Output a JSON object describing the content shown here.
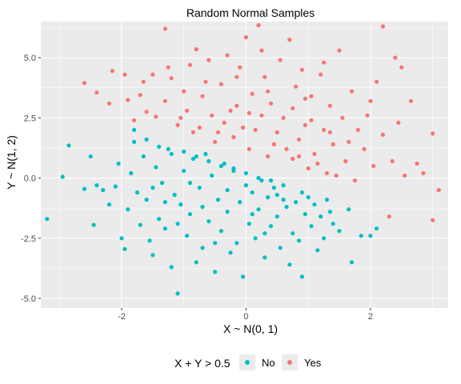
{
  "chart_data": {
    "type": "scatter",
    "title": "Random Normal Samples",
    "xlabel": "X ~ N(0, 1)",
    "ylabel": "Y ~ N(1, 2)",
    "xlim": [
      -3.3,
      3.25
    ],
    "ylim": [
      -5.4,
      6.5
    ],
    "x_ticks": [
      -2,
      0,
      2
    ],
    "x_tick_labels": [
      "-2",
      "0",
      "2"
    ],
    "y_ticks": [
      -5,
      -2.5,
      0,
      2.5,
      5
    ],
    "y_tick_labels": [
      "-5.0",
      "-2.5",
      "0.0",
      "2.5",
      "5.0"
    ],
    "grid": true,
    "background": "#ebebeb",
    "legend": {
      "title": "X + Y > 0.5",
      "placement": "bottom",
      "entries": [
        {
          "label": "No",
          "color": "#00bfc4"
        },
        {
          "label": "Yes",
          "color": "#f8766d"
        }
      ]
    },
    "series": [
      {
        "name": "No",
        "color": "#00bfc4",
        "points": [
          [
            -3.2,
            -1.7
          ],
          [
            -2.95,
            0.05
          ],
          [
            -2.85,
            1.35
          ],
          [
            -2.6,
            -0.45
          ],
          [
            -2.5,
            0.9
          ],
          [
            -2.45,
            -1.95
          ],
          [
            -2.4,
            -0.3
          ],
          [
            -2.3,
            -0.5
          ],
          [
            -2.2,
            -1.1
          ],
          [
            -2.1,
            -0.35
          ],
          [
            -2.05,
            0.6
          ],
          [
            -2.0,
            -2.5
          ],
          [
            -1.95,
            -2.95
          ],
          [
            -1.9,
            -1.3
          ],
          [
            -1.85,
            0.2
          ],
          [
            -1.8,
            1.5
          ],
          [
            -1.75,
            -0.6
          ],
          [
            -1.7,
            -1.95
          ],
          [
            -1.65,
            0.9
          ],
          [
            -1.6,
            -0.9
          ],
          [
            -1.55,
            -2.6
          ],
          [
            -1.5,
            -3.2
          ],
          [
            -1.45,
            0.45
          ],
          [
            -1.4,
            -1.7
          ],
          [
            -1.35,
            -0.2
          ],
          [
            -1.3,
            -2.1
          ],
          [
            -1.25,
            1.2
          ],
          [
            -1.2,
            -3.7
          ],
          [
            -1.15,
            -0.7
          ],
          [
            -1.1,
            -4.8
          ],
          [
            -1.05,
            -1.1
          ],
          [
            -1.0,
            0.3
          ],
          [
            -0.95,
            -2.4
          ],
          [
            -0.9,
            -1.5
          ],
          [
            -0.85,
            0.8
          ],
          [
            -0.8,
            -3.5
          ],
          [
            -0.75,
            -0.4
          ],
          [
            -0.7,
            -2.9
          ],
          [
            -0.65,
            1.0
          ],
          [
            -0.6,
            -1.8
          ],
          [
            -0.55,
            0.1
          ],
          [
            -0.5,
            -3.9
          ],
          [
            -0.45,
            -0.9
          ],
          [
            -0.4,
            -2.2
          ],
          [
            -0.35,
            0.6
          ],
          [
            -0.3,
            -1.4
          ],
          [
            -0.25,
            -3.1
          ],
          [
            -0.2,
            0.4
          ],
          [
            -0.15,
            -2.7
          ],
          [
            -0.1,
            -1.0
          ],
          [
            -0.05,
            -4.1
          ],
          [
            0.0,
            -0.3
          ],
          [
            0.05,
            -1.9
          ],
          [
            0.1,
            -0.6
          ],
          [
            0.15,
            -2.5
          ],
          [
            0.2,
            -1.3
          ],
          [
            0.25,
            -0.1
          ],
          [
            0.3,
            -3.3
          ],
          [
            0.35,
            -0.8
          ],
          [
            0.4,
            -2.0
          ],
          [
            0.45,
            -0.4
          ],
          [
            0.5,
            -1.6
          ],
          [
            0.55,
            -2.9
          ],
          [
            0.6,
            -0.9
          ],
          [
            0.65,
            -1.2
          ],
          [
            0.7,
            -3.6
          ],
          [
            0.75,
            -2.3
          ],
          [
            0.8,
            -1.0
          ],
          [
            0.85,
            -2.6
          ],
          [
            0.9,
            -4.1
          ],
          [
            0.95,
            -1.5
          ],
          [
            1.0,
            -0.8
          ],
          [
            1.05,
            -2.0
          ],
          [
            1.1,
            -1.1
          ],
          [
            1.15,
            -3.0
          ],
          [
            1.2,
            -1.6
          ],
          [
            1.25,
            -2.5
          ],
          [
            1.3,
            -0.9
          ],
          [
            1.35,
            -1.4
          ],
          [
            1.4,
            -1.9
          ],
          [
            1.5,
            -2.2
          ],
          [
            1.65,
            -1.3
          ],
          [
            1.7,
            -3.5
          ],
          [
            1.85,
            -2.4
          ],
          [
            2.0,
            -2.4
          ],
          [
            2.1,
            -2.1
          ],
          [
            -1.8,
            2.0
          ],
          [
            -1.6,
            1.6
          ],
          [
            -1.4,
            1.3
          ],
          [
            -1.2,
            1.0
          ],
          [
            -1.0,
            1.1
          ],
          [
            -0.8,
            0.9
          ],
          [
            -0.6,
            0.7
          ],
          [
            -0.4,
            0.5
          ],
          [
            -0.2,
            0.3
          ],
          [
            0.0,
            0.2
          ],
          [
            0.2,
            0.0
          ],
          [
            0.4,
            -0.1
          ],
          [
            0.6,
            -0.3
          ],
          [
            -1.5,
            -0.4
          ],
          [
            -1.1,
            -1.9
          ],
          [
            -0.7,
            -1.2
          ],
          [
            -0.3,
            -0.5
          ],
          [
            0.1,
            -1.5
          ],
          [
            0.5,
            -0.7
          ],
          [
            0.9,
            -0.6
          ],
          [
            -0.9,
            -0.2
          ],
          [
            -0.5,
            -2.7
          ],
          [
            -1.3,
            -1.0
          ],
          [
            0.3,
            -2.3
          ]
        ]
      },
      {
        "name": "Yes",
        "color": "#f8766d",
        "points": [
          [
            -2.6,
            3.95
          ],
          [
            -2.4,
            3.55
          ],
          [
            -2.2,
            3.1
          ],
          [
            -2.15,
            4.45
          ],
          [
            -1.95,
            4.3
          ],
          [
            -1.9,
            3.25
          ],
          [
            -1.8,
            2.4
          ],
          [
            -1.7,
            3.45
          ],
          [
            -1.6,
            2.75
          ],
          [
            -1.5,
            4.3
          ],
          [
            -1.45,
            2.55
          ],
          [
            -1.3,
            3.2
          ],
          [
            -1.3,
            6.2
          ],
          [
            -1.2,
            4.15
          ],
          [
            -1.1,
            2.2
          ],
          [
            -1.0,
            3.6
          ],
          [
            -0.95,
            2.8
          ],
          [
            -0.9,
            4.7
          ],
          [
            -0.85,
            1.9
          ],
          [
            -0.8,
            5.35
          ],
          [
            -0.7,
            3.4
          ],
          [
            -0.6,
            4.9
          ],
          [
            -0.55,
            2.6
          ],
          [
            -0.5,
            1.5
          ],
          [
            -0.4,
            3.9
          ],
          [
            -0.35,
            2.3
          ],
          [
            -0.3,
            5.1
          ],
          [
            -0.2,
            1.7
          ],
          [
            -0.15,
            3.0
          ],
          [
            -0.1,
            4.6
          ],
          [
            -0.05,
            2.1
          ],
          [
            0.0,
            5.85
          ],
          [
            0.05,
            1.2
          ],
          [
            0.1,
            3.5
          ],
          [
            0.2,
            6.35
          ],
          [
            0.25,
            2.6
          ],
          [
            0.3,
            4.2
          ],
          [
            0.35,
            0.9
          ],
          [
            0.4,
            3.1
          ],
          [
            0.5,
            1.9
          ],
          [
            0.55,
            4.9
          ],
          [
            0.6,
            2.5
          ],
          [
            0.7,
            5.75
          ],
          [
            0.75,
            0.8
          ],
          [
            0.8,
            3.8
          ],
          [
            0.85,
            1.6
          ],
          [
            0.9,
            4.5
          ],
          [
            0.95,
            2.2
          ],
          [
            1.0,
            0.4
          ],
          [
            1.05,
            3.4
          ],
          [
            1.1,
            1.0
          ],
          [
            1.2,
            4.3
          ],
          [
            1.25,
            2.0
          ],
          [
            1.3,
            0.2
          ],
          [
            1.35,
            3.0
          ],
          [
            1.4,
            1.4
          ],
          [
            1.5,
            5.3
          ],
          [
            1.55,
            2.5
          ],
          [
            1.6,
            0.7
          ],
          [
            1.7,
            3.6
          ],
          [
            1.75,
            -0.1
          ],
          [
            1.8,
            2.0
          ],
          [
            1.9,
            1.2
          ],
          [
            2.0,
            3.2
          ],
          [
            2.05,
            0.5
          ],
          [
            2.1,
            4.0
          ],
          [
            2.2,
            6.3
          ],
          [
            2.2,
            1.8
          ],
          [
            2.3,
            -1.6
          ],
          [
            2.35,
            0.7
          ],
          [
            2.4,
            5.0
          ],
          [
            2.45,
            2.3
          ],
          [
            2.5,
            4.6
          ],
          [
            2.55,
            0.1
          ],
          [
            2.65,
            3.2
          ],
          [
            2.75,
            0.6
          ],
          [
            2.85,
            0.2
          ],
          [
            3.0,
            1.85
          ],
          [
            3.0,
            -1.75
          ],
          [
            3.1,
            -0.5
          ],
          [
            -1.65,
            4.0
          ],
          [
            -1.25,
            4.6
          ],
          [
            -0.65,
            4.0
          ],
          [
            -0.25,
            2.8
          ],
          [
            0.15,
            2.0
          ],
          [
            0.45,
            1.4
          ],
          [
            0.65,
            1.2
          ],
          [
            0.85,
            0.9
          ],
          [
            1.15,
            0.6
          ],
          [
            1.45,
            0.1
          ],
          [
            -0.75,
            2.1
          ],
          [
            -0.45,
            1.9
          ],
          [
            0.05,
            2.7
          ],
          [
            0.35,
            3.6
          ],
          [
            0.75,
            2.9
          ],
          [
            1.05,
            2.4
          ],
          [
            1.35,
            1.9
          ],
          [
            1.65,
            1.5
          ],
          [
            -1.05,
            2.5
          ],
          [
            -0.15,
            4.2
          ],
          [
            0.25,
            5.3
          ],
          [
            0.95,
            3.3
          ],
          [
            1.25,
            4.8
          ],
          [
            1.95,
            2.6
          ]
        ]
      }
    ]
  }
}
